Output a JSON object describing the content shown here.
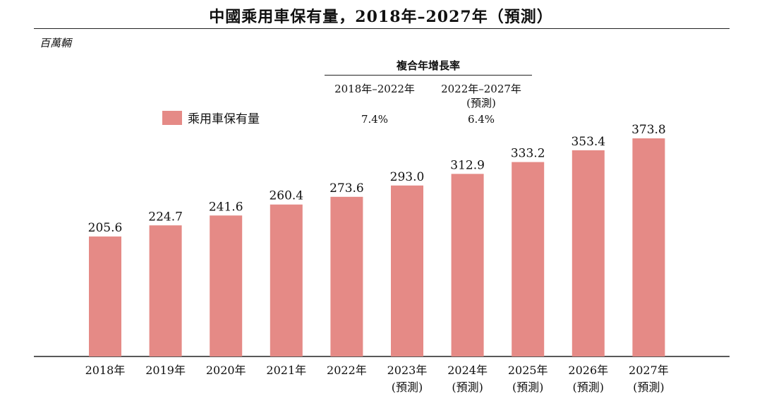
{
  "header": {
    "title": "中國乘用車保有量，2018年–2027年（預測）",
    "unit": "百萬輛"
  },
  "cagr": {
    "title": "複合年增長率",
    "periods": [
      {
        "label": "2018年–2022年",
        "value": "7.4%"
      },
      {
        "label": "2022年–2027年",
        "note": "(預測)",
        "value": "6.4%"
      }
    ]
  },
  "chart_data": {
    "type": "bar",
    "categories": [
      "2018年",
      "2019年",
      "2020年",
      "2021年",
      "2022年",
      "2023年",
      "2024年",
      "2025年",
      "2026年",
      "2027年"
    ],
    "category_notes": [
      "",
      "",
      "",
      "",
      "",
      "(預測)",
      "(預測)",
      "(預測)",
      "(預測)",
      "(預測)"
    ],
    "series": [
      {
        "name": "乘用車保有量",
        "values": [
          205.6,
          224.7,
          241.6,
          260.4,
          273.6,
          293.0,
          312.9,
          333.2,
          353.4,
          373.8
        ],
        "labels": [
          "205.6",
          "224.7",
          "241.6",
          "260.4",
          "273.6",
          "293.0",
          "312.9",
          "333.2",
          "353.4",
          "373.8"
        ],
        "color": "#e58a86"
      }
    ],
    "title": "中國乘用車保有量，2018年–2027年（預測）",
    "ylabel": "百萬輛",
    "ylim": [
      0,
      373.8
    ],
    "grid": false,
    "legend_position": "top-left"
  }
}
